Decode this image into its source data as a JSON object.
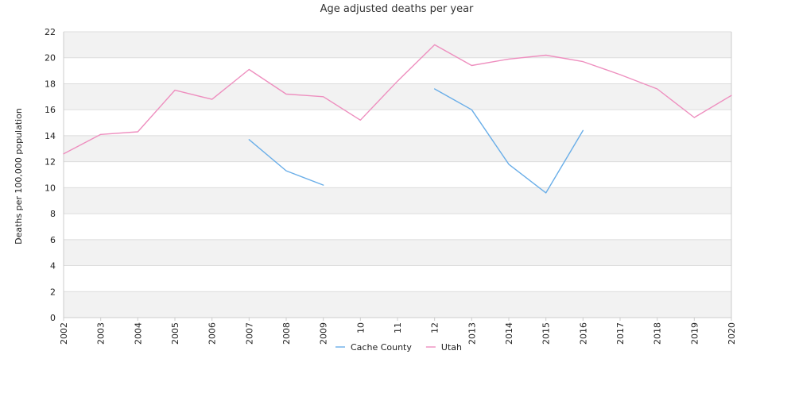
{
  "chart_data": {
    "type": "line",
    "title": "Age adjusted deaths per year",
    "xlabel": "",
    "ylabel": "Deaths per 100,000 population",
    "ylim": [
      0,
      22
    ],
    "y_ticks": [
      0,
      2,
      4,
      6,
      8,
      10,
      12,
      14,
      16,
      18,
      20,
      22
    ],
    "grid": "horizontal, alternating gray bands",
    "legend_position": "bottom-center",
    "categories": [
      "2002",
      "2003",
      "2004",
      "2005",
      "2006",
      "2007",
      "2008",
      "2009",
      "10",
      "11",
      "12",
      "2013",
      "2014",
      "2015",
      "2016",
      "2017",
      "2018",
      "2019",
      "2020"
    ],
    "series": [
      {
        "name": "Cache County",
        "color": "#6aaee8",
        "values": [
          null,
          null,
          null,
          null,
          null,
          13.7,
          11.3,
          10.2,
          null,
          null,
          17.6,
          16.0,
          11.8,
          9.6,
          14.4,
          null,
          null,
          null,
          null
        ]
      },
      {
        "name": "Utah",
        "color": "#ee8fbf",
        "values": [
          12.6,
          14.1,
          14.3,
          17.5,
          16.8,
          19.1,
          17.2,
          17.0,
          15.2,
          18.2,
          21.0,
          19.4,
          19.9,
          20.2,
          19.7,
          18.7,
          17.6,
          15.4,
          17.1
        ]
      }
    ]
  }
}
